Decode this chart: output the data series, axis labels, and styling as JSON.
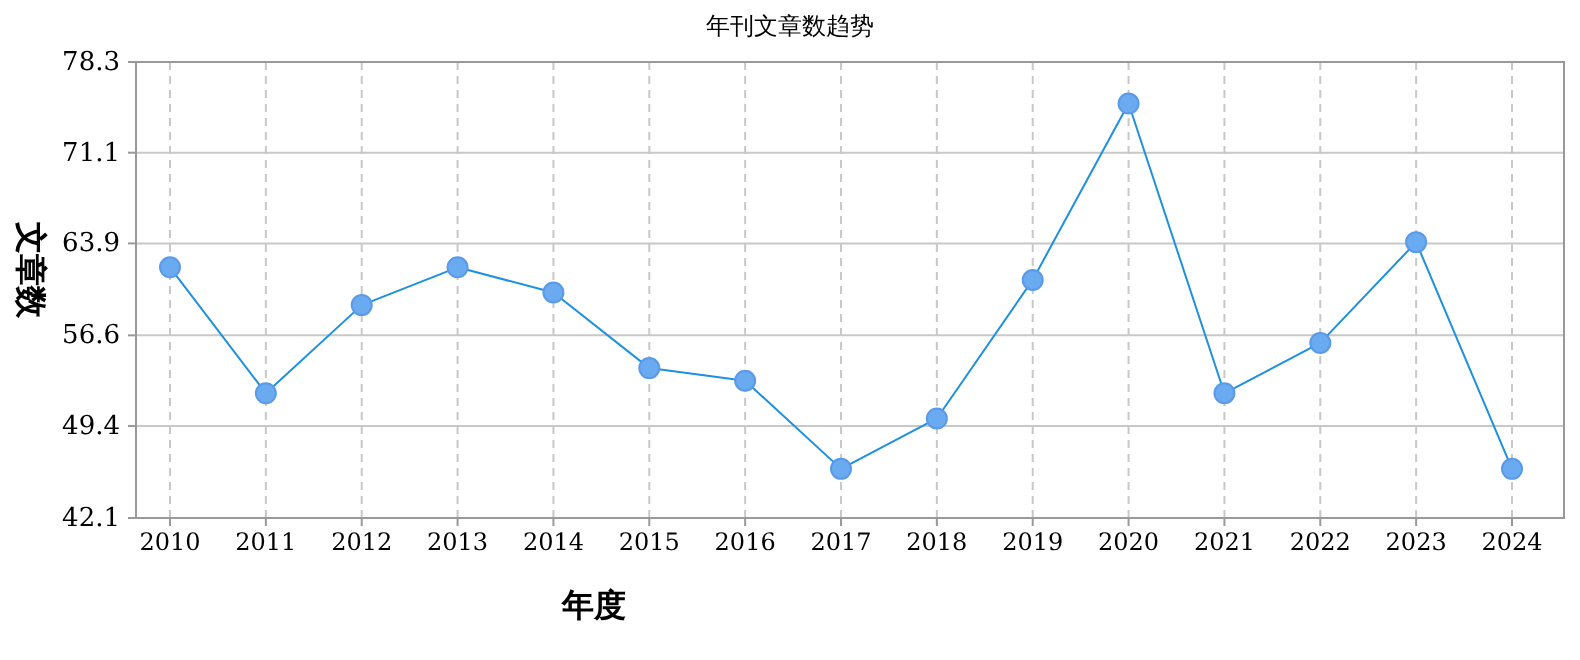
{
  "chart_data": {
    "type": "line",
    "title": "年刊文章数趋势",
    "xlabel": "年度",
    "ylabel": "文章数",
    "categories": [
      "2010",
      "2011",
      "2012",
      "2013",
      "2014",
      "2015",
      "2016",
      "2017",
      "2018",
      "2019",
      "2020",
      "2021",
      "2022",
      "2023",
      "2024"
    ],
    "series": [
      {
        "color": "#1e90e0",
        "values": [
          62,
          52,
          59,
          62,
          60,
          54,
          53,
          46,
          50,
          61,
          75,
          52,
          56,
          64,
          46
        ]
      }
    ],
    "ylim": [
      42.1,
      78.3
    ],
    "yticks": [
      42.1,
      49.4,
      56.6,
      63.9,
      71.1,
      78.3
    ],
    "grid": true,
    "marker": "circle",
    "line_style": "solid"
  }
}
